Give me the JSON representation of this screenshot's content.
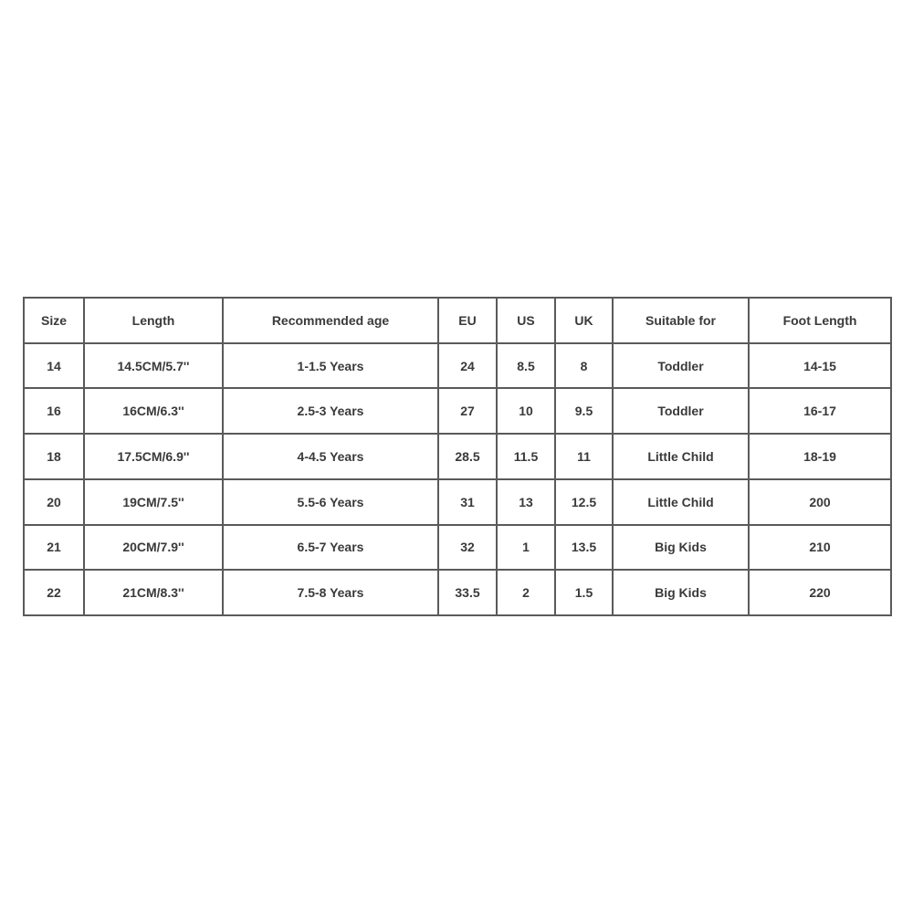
{
  "table": {
    "headers": [
      "Size",
      "Length",
      "Recommended age",
      "EU",
      "US",
      "UK",
      "Suitable for",
      "Foot Length"
    ],
    "rows": [
      [
        "14",
        "14.5CM/5.7''",
        "1-1.5 Years",
        "24",
        "8.5",
        "8",
        "Toddler",
        "14-15"
      ],
      [
        "16",
        "16CM/6.3''",
        "2.5-3 Years",
        "27",
        "10",
        "9.5",
        "Toddler",
        "16-17"
      ],
      [
        "18",
        "17.5CM/6.9''",
        "4-4.5 Years",
        "28.5",
        "11.5",
        "11",
        "Little Child",
        "18-19"
      ],
      [
        "20",
        "19CM/7.5''",
        "5.5-6 Years",
        "31",
        "13",
        "12.5",
        "Little Child",
        "200"
      ],
      [
        "21",
        "20CM/7.9''",
        "6.5-7 Years",
        "32",
        "1",
        "13.5",
        "Big Kids",
        "210"
      ],
      [
        "22",
        "21CM/8.3''",
        "7.5-8 Years",
        "33.5",
        "2",
        "1.5",
        "Big Kids",
        "220"
      ]
    ]
  }
}
